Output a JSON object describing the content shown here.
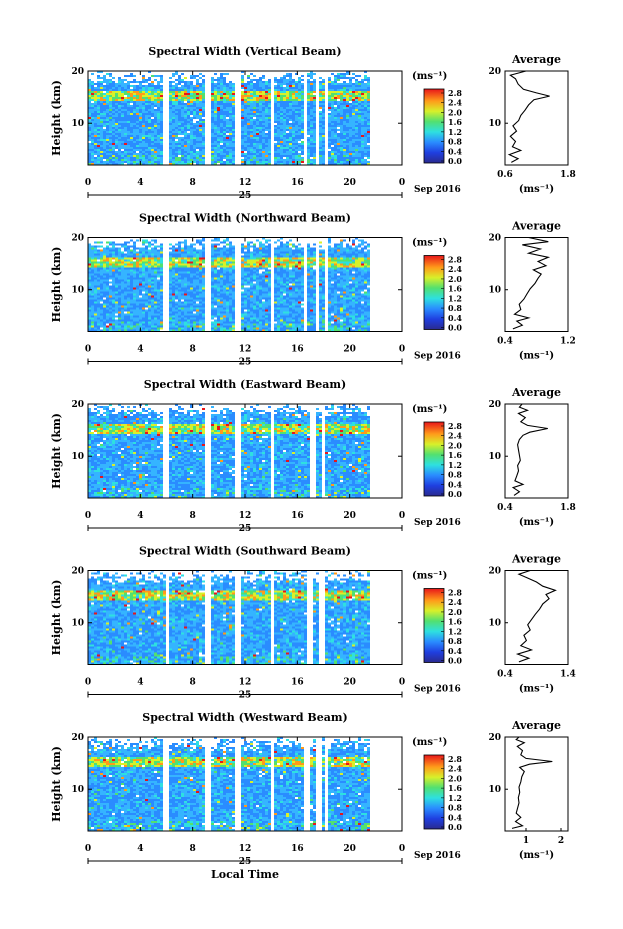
{
  "chart_data": {
    "type": "heatmap",
    "panels": [
      {
        "title": "Spectral Width (Vertical Beam)",
        "average_title": "Average",
        "ylabel": "Height (km)",
        "ylim": [
          2,
          20
        ],
        "yticks": [
          "20",
          "10"
        ],
        "xlim": [
          0,
          24
        ],
        "xticks": [
          "0",
          "4",
          "8",
          "12",
          "16",
          "20",
          "0"
        ],
        "day_label": "25",
        "month_label": "Sep 2016",
        "colorbar_unit": "(ms⁻¹)",
        "colorbar_ticks": [
          "2.8",
          "2.4",
          "2.0",
          "1.6",
          "1.2",
          "0.8",
          "0.4",
          "0.0"
        ],
        "avg_xlim": [
          0.6,
          1.8
        ],
        "avg_xticks": [
          "0.6",
          "1.8"
        ],
        "avg_unit": "(ms⁻¹)",
        "avg_profile": [
          [
            0.72,
            2.5
          ],
          [
            0.85,
            3.2
          ],
          [
            0.68,
            4.0
          ],
          [
            0.9,
            4.8
          ],
          [
            0.74,
            5.5
          ],
          [
            0.8,
            6.5
          ],
          [
            0.7,
            7.5
          ],
          [
            0.82,
            8.5
          ],
          [
            0.75,
            9.5
          ],
          [
            0.86,
            10.5
          ],
          [
            0.9,
            11.5
          ],
          [
            0.98,
            12.5
          ],
          [
            1.05,
            13.5
          ],
          [
            1.15,
            14.5
          ],
          [
            1.45,
            15.2
          ],
          [
            1.2,
            15.8
          ],
          [
            0.95,
            16.5
          ],
          [
            0.85,
            17.5
          ],
          [
            0.8,
            18.5
          ],
          [
            0.7,
            19.2
          ],
          [
            0.85,
            19.6
          ],
          [
            1.0,
            20.0
          ]
        ]
      },
      {
        "title": "Spectral Width (Northward Beam)",
        "average_title": "Average",
        "ylabel": "Height (km)",
        "ylim": [
          2,
          20
        ],
        "yticks": [
          "20",
          "10"
        ],
        "xlim": [
          0,
          24
        ],
        "xticks": [
          "0",
          "4",
          "8",
          "12",
          "16",
          "20",
          "0"
        ],
        "day_label": "25",
        "month_label": "Sep 2016",
        "colorbar_unit": "(ms⁻¹)",
        "colorbar_ticks": [
          "2.8",
          "2.4",
          "2.0",
          "1.6",
          "1.2",
          "0.8",
          "0.4",
          "0.0"
        ],
        "avg_xlim": [
          0.4,
          1.2
        ],
        "avg_xticks": [
          "0.4",
          "1.2"
        ],
        "avg_unit": "(ms⁻¹)",
        "avg_profile": [
          [
            0.5,
            2.5
          ],
          [
            0.62,
            3.2
          ],
          [
            0.55,
            4.0
          ],
          [
            0.7,
            4.6
          ],
          [
            0.52,
            5.3
          ],
          [
            0.6,
            6.2
          ],
          [
            0.58,
            7.2
          ],
          [
            0.64,
            8.2
          ],
          [
            0.68,
            9.2
          ],
          [
            0.72,
            10.2
          ],
          [
            0.78,
            11.2
          ],
          [
            0.82,
            12.2
          ],
          [
            0.86,
            13.0
          ],
          [
            0.76,
            13.8
          ],
          [
            0.92,
            14.6
          ],
          [
            0.82,
            15.4
          ],
          [
            0.95,
            16.2
          ],
          [
            0.7,
            17.0
          ],
          [
            0.85,
            17.8
          ],
          [
            0.62,
            18.6
          ],
          [
            0.95,
            19.2
          ],
          [
            0.7,
            20.0
          ]
        ]
      },
      {
        "title": "Spectral Width (Eastward Beam)",
        "average_title": "Average",
        "ylabel": "Height (km)",
        "ylim": [
          2,
          20
        ],
        "yticks": [
          "20",
          "10"
        ],
        "xlim": [
          0,
          24
        ],
        "xticks": [
          "0",
          "4",
          "8",
          "12",
          "16",
          "20",
          "0"
        ],
        "day_label": "25",
        "month_label": "Sep 2016",
        "colorbar_unit": "(ms⁻¹)",
        "colorbar_ticks": [
          "2.8",
          "2.4",
          "2.0",
          "1.6",
          "1.2",
          "0.8",
          "0.4",
          "0.0"
        ],
        "avg_xlim": [
          0.4,
          1.8
        ],
        "avg_xticks": [
          "0.4",
          "1.8"
        ],
        "avg_unit": "(ms⁻¹)",
        "avg_profile": [
          [
            0.6,
            2.5
          ],
          [
            0.72,
            3.2
          ],
          [
            0.58,
            4.0
          ],
          [
            0.8,
            4.6
          ],
          [
            0.62,
            5.3
          ],
          [
            0.66,
            6.2
          ],
          [
            0.7,
            7.2
          ],
          [
            0.68,
            8.2
          ],
          [
            0.74,
            9.2
          ],
          [
            0.72,
            10.2
          ],
          [
            0.7,
            11.2
          ],
          [
            0.68,
            12.2
          ],
          [
            0.72,
            13.2
          ],
          [
            0.8,
            14.0
          ],
          [
            0.95,
            14.6
          ],
          [
            1.35,
            15.3
          ],
          [
            0.9,
            15.9
          ],
          [
            0.75,
            16.6
          ],
          [
            0.85,
            17.4
          ],
          [
            0.7,
            18.2
          ],
          [
            0.9,
            18.8
          ],
          [
            0.72,
            19.4
          ],
          [
            0.78,
            20.0
          ]
        ]
      },
      {
        "title": "Spectral Width (Southward Beam)",
        "average_title": "Average",
        "ylabel": "Height (km)",
        "ylim": [
          2,
          20
        ],
        "yticks": [
          "20",
          "10"
        ],
        "xlim": [
          0,
          24
        ],
        "xticks": [
          "0",
          "4",
          "8",
          "12",
          "16",
          "20",
          "0"
        ],
        "day_label": "25",
        "month_label": "Sep 2016",
        "colorbar_unit": "(ms⁻¹)",
        "colorbar_ticks": [
          "2.8",
          "2.4",
          "2.0",
          "1.6",
          "1.2",
          "0.8",
          "0.4",
          "0.0"
        ],
        "avg_xlim": [
          0.4,
          1.4
        ],
        "avg_xticks": [
          "0.4",
          "1.4"
        ],
        "avg_unit": "(ms⁻¹)",
        "avg_profile": [
          [
            0.62,
            2.5
          ],
          [
            0.78,
            3.2
          ],
          [
            0.6,
            4.0
          ],
          [
            0.82,
            4.8
          ],
          [
            0.65,
            5.6
          ],
          [
            0.74,
            6.6
          ],
          [
            0.7,
            7.6
          ],
          [
            0.8,
            8.6
          ],
          [
            0.76,
            9.6
          ],
          [
            0.82,
            10.6
          ],
          [
            0.88,
            11.6
          ],
          [
            0.95,
            12.6
          ],
          [
            1.0,
            13.6
          ],
          [
            1.1,
            14.6
          ],
          [
            1.05,
            15.4
          ],
          [
            1.2,
            16.2
          ],
          [
            1.0,
            17.0
          ],
          [
            0.9,
            17.8
          ],
          [
            0.75,
            18.6
          ],
          [
            0.62,
            19.3
          ],
          [
            0.8,
            20.0
          ]
        ]
      },
      {
        "title": "Spectral Width (Westward Beam)",
        "average_title": "Average",
        "ylabel": "Height (km)",
        "ylim": [
          2,
          20
        ],
        "yticks": [
          "20",
          "10"
        ],
        "xlim": [
          0,
          24
        ],
        "xticks": [
          "0",
          "4",
          "8",
          "12",
          "16",
          "20",
          "0"
        ],
        "day_label": "25",
        "month_label": "Sep 2016",
        "colorbar_unit": "(ms⁻¹)",
        "colorbar_ticks": [
          "2.8",
          "2.4",
          "2.0",
          "1.6",
          "1.2",
          "0.8",
          "0.4",
          "0.0"
        ],
        "avg_xlim": [
          0.4,
          2.2
        ],
        "avg_xticks": [
          "1",
          "2"
        ],
        "avg_unit": "(ms⁻¹)",
        "avg_profile": [
          [
            0.6,
            2.5
          ],
          [
            0.9,
            3.0
          ],
          [
            0.7,
            3.8
          ],
          [
            0.85,
            4.6
          ],
          [
            0.72,
            5.4
          ],
          [
            0.76,
            6.4
          ],
          [
            0.8,
            7.4
          ],
          [
            0.78,
            8.4
          ],
          [
            0.82,
            9.4
          ],
          [
            0.8,
            10.4
          ],
          [
            0.85,
            11.4
          ],
          [
            0.88,
            12.4
          ],
          [
            0.95,
            13.4
          ],
          [
            0.82,
            14.2
          ],
          [
            1.1,
            14.8
          ],
          [
            1.75,
            15.3
          ],
          [
            1.0,
            15.9
          ],
          [
            0.85,
            16.6
          ],
          [
            0.9,
            17.4
          ],
          [
            0.75,
            18.2
          ],
          [
            0.95,
            18.9
          ],
          [
            0.72,
            19.5
          ],
          [
            0.8,
            20.0
          ]
        ]
      }
    ],
    "xlabel": "Local Time"
  }
}
